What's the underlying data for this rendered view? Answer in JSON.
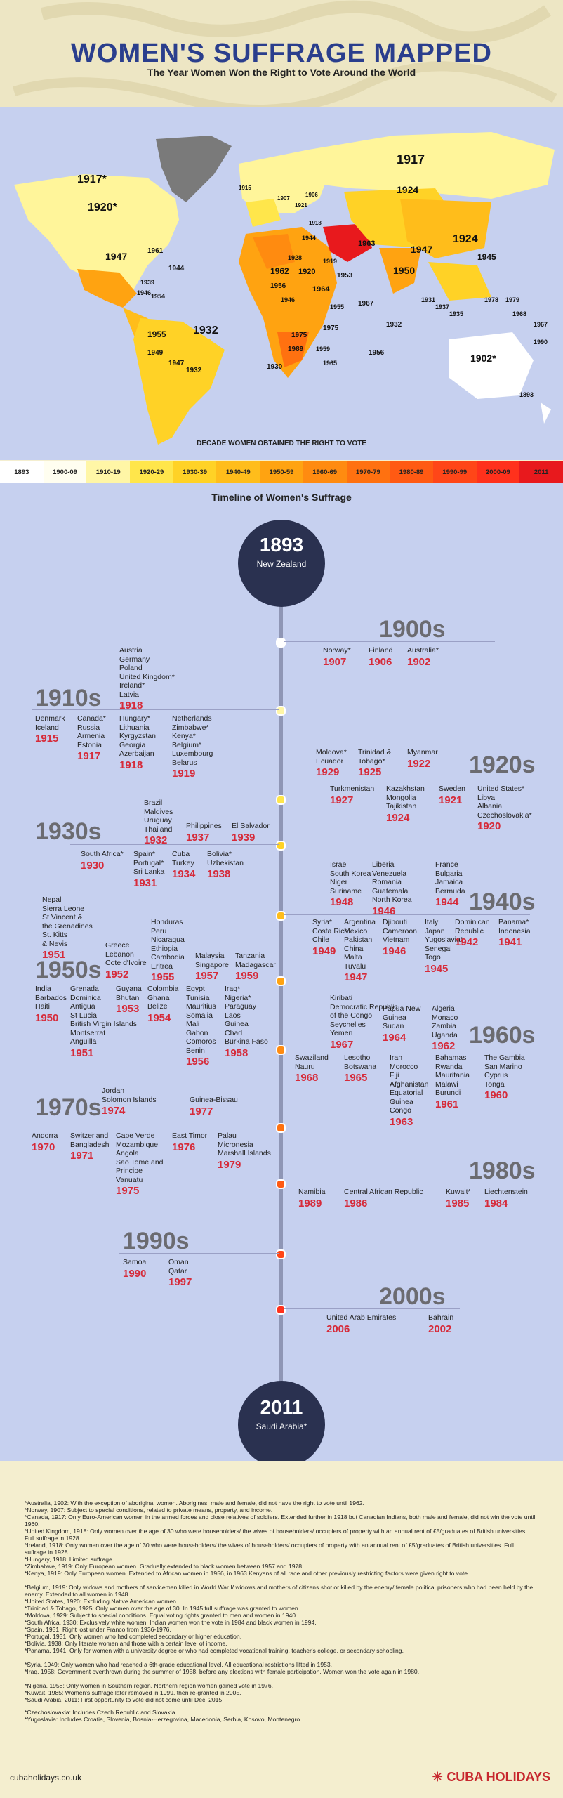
{
  "header": {
    "title": "WOMEN'S SUFFRAGE MAPPED",
    "subtitle": "The Year Women Won the Right to Vote Around the World"
  },
  "map": {
    "caption": "DECADE WOMEN OBTAINED THE RIGHT TO VOTE",
    "labels": [
      "1917*",
      "1920*",
      "1947",
      "1961",
      "1944",
      "1955",
      "1932",
      "1949",
      "1947",
      "1932",
      "1939",
      "1946",
      "1954",
      "1924",
      "1950",
      "1953",
      "1915",
      "1907",
      "1906",
      "1917",
      "1921",
      "1918",
      "1963",
      "1962",
      "1920",
      "1956",
      "1919",
      "1946",
      "1964",
      "1955",
      "1975",
      "1975",
      "1989",
      "1930",
      "1967",
      "1932",
      "1956",
      "1924",
      "1947",
      "1945",
      "1937",
      "1935",
      "1931",
      "1978",
      "1979",
      "1968",
      "1967",
      "1990",
      "1902*",
      "1893",
      "1965",
      "1928",
      "1959",
      "1944"
    ],
    "legend": [
      {
        "label": "1893",
        "bg": "#ffffff"
      },
      {
        "label": "1900-09",
        "bg": "#fffef0"
      },
      {
        "label": "1910-19",
        "bg": "#fff6a6"
      },
      {
        "label": "1920-29",
        "bg": "#ffe64b"
      },
      {
        "label": "1930-39",
        "bg": "#ffd226"
      },
      {
        "label": "1940-49",
        "bg": "#ffbd1b"
      },
      {
        "label": "1950-59",
        "bg": "#ffa311"
      },
      {
        "label": "1960-69",
        "bg": "#ff8b10"
      },
      {
        "label": "1970-79",
        "bg": "#ff7110"
      },
      {
        "label": "1980-89",
        "bg": "#ff5a13"
      },
      {
        "label": "1990-99",
        "bg": "#ff4618"
      },
      {
        "label": "2000-09",
        "bg": "#ff311c"
      },
      {
        "label": "2011",
        "bg": "#e8191d"
      }
    ]
  },
  "timeline": {
    "title": "Timeline of Women's Suffrage",
    "start": {
      "year": "1893",
      "name": "New Zealand"
    },
    "end": {
      "year": "2011",
      "name": "Saudi Arabia*"
    },
    "decades": [
      "1900s",
      "1910s",
      "1920s",
      "1930s",
      "1940s",
      "1950s",
      "1960s",
      "1970s",
      "1980s",
      "1990s",
      "2000s"
    ],
    "groups": [
      {
        "id": "g1907",
        "countries": "Norway*",
        "year": "1907"
      },
      {
        "id": "g1906",
        "countries": "Finland",
        "year": "1906"
      },
      {
        "id": "g1902",
        "countries": "Australia*",
        "year": "1902"
      },
      {
        "id": "g1918a",
        "countries": "Austria\nGermany\nPoland\nUnited Kingdom*\nIreland*\nLatvia",
        "year": "1918"
      },
      {
        "id": "g1915",
        "countries": "Denmark\nIceland",
        "year": "1915"
      },
      {
        "id": "g1917",
        "countries": "Canada*\nRussia\nArmenia\nEstonia",
        "year": "1917"
      },
      {
        "id": "g1918b",
        "countries": "Hungary*\nLithuania\nKyrgyzstan\nGeorgia\nAzerbaijan",
        "year": "1918"
      },
      {
        "id": "g1919",
        "countries": "Netherlands\nZimbabwe*\nKenya*\nBelgium*\nLuxembourg\nBelarus",
        "year": "1919"
      },
      {
        "id": "g1929",
        "countries": "Moldova*\nEcuador",
        "year": "1929"
      },
      {
        "id": "g1925",
        "countries": "Trinidad &\nTobago*",
        "year": "1925"
      },
      {
        "id": "g1922",
        "countries": "Myanmar",
        "year": "1922"
      },
      {
        "id": "g1927",
        "countries": "Turkmenistan",
        "year": "1927"
      },
      {
        "id": "g1924",
        "countries": "Kazakhstan\nMongolia\nTajikistan",
        "year": "1924"
      },
      {
        "id": "g1921",
        "countries": "Sweden",
        "year": "1921"
      },
      {
        "id": "g1920",
        "countries": "United States*\nLibya\nAlbania\nCzechoslovakia*",
        "year": "1920"
      },
      {
        "id": "g1932",
        "countries": "Brazil\nMaldives\nUruguay\nThailand",
        "year": "1932"
      },
      {
        "id": "g1937",
        "countries": "Philippines",
        "year": "1937"
      },
      {
        "id": "g1939",
        "countries": "El Salvador",
        "year": "1939"
      },
      {
        "id": "g1930",
        "countries": "South Africa*",
        "year": "1930"
      },
      {
        "id": "g1931",
        "countries": "Spain*\nPortugal*\nSri Lanka",
        "year": "1931"
      },
      {
        "id": "g1934",
        "countries": "Cuba\nTurkey",
        "year": "1934"
      },
      {
        "id": "g1938",
        "countries": "Bolivia*\nUzbekistan",
        "year": "1938"
      },
      {
        "id": "g1948",
        "countries": "Israel\nSouth Korea\nNiger\nSuriname",
        "year": "1948"
      },
      {
        "id": "g1946",
        "countries": "Liberia\nVenezuela\nRomania\nGuatemala\nNorth Korea",
        "year": "1946"
      },
      {
        "id": "g1944",
        "countries": "France\nBulgaria\nJamaica\nBermuda",
        "year": "1944"
      },
      {
        "id": "g1949",
        "countries": "Syria*\nCosta Rica\nChile",
        "year": "1949"
      },
      {
        "id": "g1947",
        "countries": "Argentina\nMexico\nPakistan\nChina\nMalta\nTuvalu",
        "year": "1947"
      },
      {
        "id": "g1946b",
        "countries": "Djibouti\nCameroon\nVietnam",
        "year": "1946"
      },
      {
        "id": "g1945",
        "countries": "Italy\nJapan\nYugoslavia*\nSenegal\nTogo",
        "year": "1945"
      },
      {
        "id": "g1942",
        "countries": "Dominican\nRepublic",
        "year": "1942"
      },
      {
        "id": "g1941",
        "countries": "Panama*\nIndonesia",
        "year": "1941"
      },
      {
        "id": "g1951a",
        "countries": "Nepal\nSierra Leone\nSt Vincent &\nthe Grenadines\nSt. Kitts\n& Nevis",
        "year": "1951"
      },
      {
        "id": "g1952",
        "countries": "Greece\nLebanon\nCote d'Ivoire",
        "year": "1952"
      },
      {
        "id": "g1955",
        "countries": "Honduras\nPeru\nNicaragua\nEthiopia\nCambodia\nEritrea",
        "year": "1955"
      },
      {
        "id": "g1957",
        "countries": "Malaysia\nSingapore",
        "year": "1957"
      },
      {
        "id": "g1959",
        "countries": "Tanzania\nMadagascar",
        "year": "1959"
      },
      {
        "id": "g1950",
        "countries": "India\nBarbados\nHaiti",
        "year": "1950"
      },
      {
        "id": "g1951b",
        "countries": "Grenada\nDominica\nAntigua\nSt Lucia\nBritish Virgin Islands\nMontserrat\nAnguilla",
        "year": "1951"
      },
      {
        "id": "g1953",
        "countries": "Guyana\nBhutan",
        "year": "1953"
      },
      {
        "id": "g1954",
        "countries": "Colombia\nGhana\nBelize",
        "year": "1954"
      },
      {
        "id": "g1956",
        "countries": "Egypt\nTunisia\nMauritius\nSomalia\nMali\nGabon\nComoros\nBenin",
        "year": "1956"
      },
      {
        "id": "g1958",
        "countries": "Iraq*\nNigeria*\nParaguay\nLaos\nGuinea\nChad\nBurkina Faso",
        "year": "1958"
      },
      {
        "id": "g1967",
        "countries": "Kiribati\nDemocratic Republic\nof the Congo\nSeychelles\nYemen",
        "year": "1967"
      },
      {
        "id": "g1964",
        "countries": "Papua New\nGuinea\nSudan",
        "year": "1964"
      },
      {
        "id": "g1962",
        "countries": "Algeria\nMonaco\nZambia\nUganda",
        "year": "1962"
      },
      {
        "id": "g1968",
        "countries": "Swaziland\nNauru",
        "year": "1968"
      },
      {
        "id": "g1965",
        "countries": "Lesotho\nBotswana",
        "year": "1965"
      },
      {
        "id": "g1963",
        "countries": "Iran\nMorocco\nFiji\nAfghanistan\nEquatorial\nGuinea\nCongo",
        "year": "1963"
      },
      {
        "id": "g1961",
        "countries": "Bahamas\nRwanda\nMauritania\nMalawi\nBurundi",
        "year": "1961"
      },
      {
        "id": "g1960",
        "countries": "The Gambia\nSan Marino\nCyprus\nTonga",
        "year": "1960"
      },
      {
        "id": "g1974",
        "countries": "Jordan\nSolomon Islands",
        "year": "1974"
      },
      {
        "id": "g1977",
        "countries": "Guinea-Bissau",
        "year": "1977"
      },
      {
        "id": "g1970",
        "countries": "Andorra",
        "year": "1970"
      },
      {
        "id": "g1971",
        "countries": "Switzerland\nBangladesh",
        "year": "1971"
      },
      {
        "id": "g1975",
        "countries": "Cape Verde\nMozambique\nAngola\nSao Tome and\nPrincipe\nVanuatu",
        "year": "1975"
      },
      {
        "id": "g1976",
        "countries": "East Timor",
        "year": "1976"
      },
      {
        "id": "g1979",
        "countries": "Palau\nMicronesia\nMarshall Islands",
        "year": "1979"
      },
      {
        "id": "g1989",
        "countries": "Namibia",
        "year": "1989"
      },
      {
        "id": "g1986",
        "countries": "Central African Republic",
        "year": "1986"
      },
      {
        "id": "g1985",
        "countries": "Kuwait*",
        "year": "1985"
      },
      {
        "id": "g1984",
        "countries": "Liechtenstein",
        "year": "1984"
      },
      {
        "id": "g1990",
        "countries": "Samoa",
        "year": "1990"
      },
      {
        "id": "g1997",
        "countries": "Oman\nQatar",
        "year": "1997"
      },
      {
        "id": "g2006",
        "countries": "United Arab Emirates",
        "year": "2006"
      },
      {
        "id": "g2002",
        "countries": "Bahrain",
        "year": "2002"
      }
    ]
  },
  "notes": [
    "*Australia, 1902: With the exception of aboriginal women. Aborigines, male and female, did not have the right to vote until 1962.",
    "*Norway, 1907: Subject to special conditions, related to private means, property, and income.",
    "*Canada, 1917: Only Euro-American women in the armed forces and close relatives of soldiers. Extended further in 1918 but Canadian Indians, both male and female, did not win the vote until 1960.",
    "*United Kingdom, 1918: Only women over the age of 30 who were householders/ the wives of householders/ occupiers of property with an annual rent of £5/graduates of British universities. Full suffrage in 1928.",
    "*Ireland, 1918: Only women over the age of 30 who were householders/ the wives of householders/ occupiers of property with an annual rent of £5/graduates of British universities. Full suffrage in 1928.",
    "*Hungary, 1918: Limited suffrage.",
    "*Zimbabwe, 1919: Only European women. Gradually extended to black women between 1957 and 1978.",
    "*Kenya, 1919: Only European women. Extended to African women in 1956, in 1963 Kenyans of all race and other previously restricting factors were given right to vote.",
    "*Belgium, 1919: Only widows and mothers of servicemen killed in World War I/ widows and mothers of citizens shot or killed by the enemy/ female political prisoners who had been held by the enemy. Extended to all women in 1948.",
    "*United States, 1920: Excluding Native American women.",
    "*Trinidad & Tobago, 1925: Only women over the age of 30. In 1945 full suffrage was granted to women.",
    "*Moldova, 1929: Subject to special conditions. Equal voting rights granted to men and women in 1940.",
    "*South Africa, 1930: Exclusively white women.  Indian women won the vote in 1984 and black women in 1994.",
    "*Spain, 1931: Right lost under Franco from 1936-1976.",
    "*Portugal, 1931: Only women who had completed secondary or higher education.",
    "*Bolivia, 1938: Only literate women and those with a certain level of income.",
    "*Panama, 1941: Only for women with a university degree or who had completed vocational training, teacher's college, or secondary schooling.",
    "*Syria, 1949: Only women who had reached a 6th-grade educational level. All educational restrictions lifted in 1953.",
    "*Iraq, 1958: Government overthrown during the summer of 1958, before any elections with female participation. Women won the vote again in 1980.",
    "*Nigeria, 1958: Only women in Southern region. Northern region women gained vote in 1976.",
    "*Kuwait, 1985: Women's suffrage later removed in 1999, then re-granted in 2005.",
    "*Saudi Arabia, 2011: First opportunity to vote did not come until Dec. 2015.",
    "*Czechoslovakia: Includes Czech Republic and Slovakia",
    "*Yugoslavia: Includes Croatia, Slovenia, Bosnia-Herzegovina, Macedonia, Serbia, Kosovo, Montenegro."
  ],
  "footer": {
    "site": "cubaholidays.co.uk",
    "brand": "CUBA HOLIDAYS"
  }
}
